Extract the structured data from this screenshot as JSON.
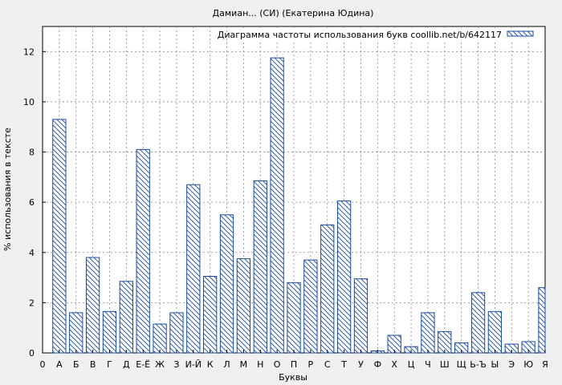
{
  "chart_data": {
    "type": "bar",
    "title": "Дамиан... (СИ) (Екатерина Юдина)",
    "xlabel": "Буквы",
    "ylabel": "% использования в тексте",
    "legend": {
      "label": "Диаграмма частоты использования букв coollib.net/b/642117",
      "position": "top-right"
    },
    "grid": true,
    "ylim": [
      0,
      13
    ],
    "yticks": [
      0,
      2,
      4,
      6,
      8,
      10,
      12
    ],
    "x_origin_label": "0",
    "bar_color": "#1a4aa0",
    "pattern": "diagonal-hatch",
    "categories": [
      "А",
      "Б",
      "В",
      "Г",
      "Д",
      "Е-Ё",
      "Ж",
      "З",
      "И-Й",
      "К",
      "Л",
      "М",
      "Н",
      "О",
      "П",
      "Р",
      "С",
      "Т",
      "У",
      "Ф",
      "Х",
      "Ц",
      "Ч",
      "Ш",
      "Щ",
      "Ь-Ъ",
      "Ы",
      "Э",
      "Ю",
      "Я"
    ],
    "values": [
      9.3,
      1.6,
      3.8,
      1.65,
      2.85,
      8.1,
      1.15,
      1.6,
      6.7,
      3.05,
      5.5,
      3.75,
      6.85,
      11.75,
      2.8,
      3.7,
      5.1,
      6.05,
      2.95,
      0.08,
      0.7,
      0.25,
      1.6,
      0.85,
      0.4,
      2.4,
      1.65,
      0.35,
      0.45,
      2.6
    ]
  }
}
